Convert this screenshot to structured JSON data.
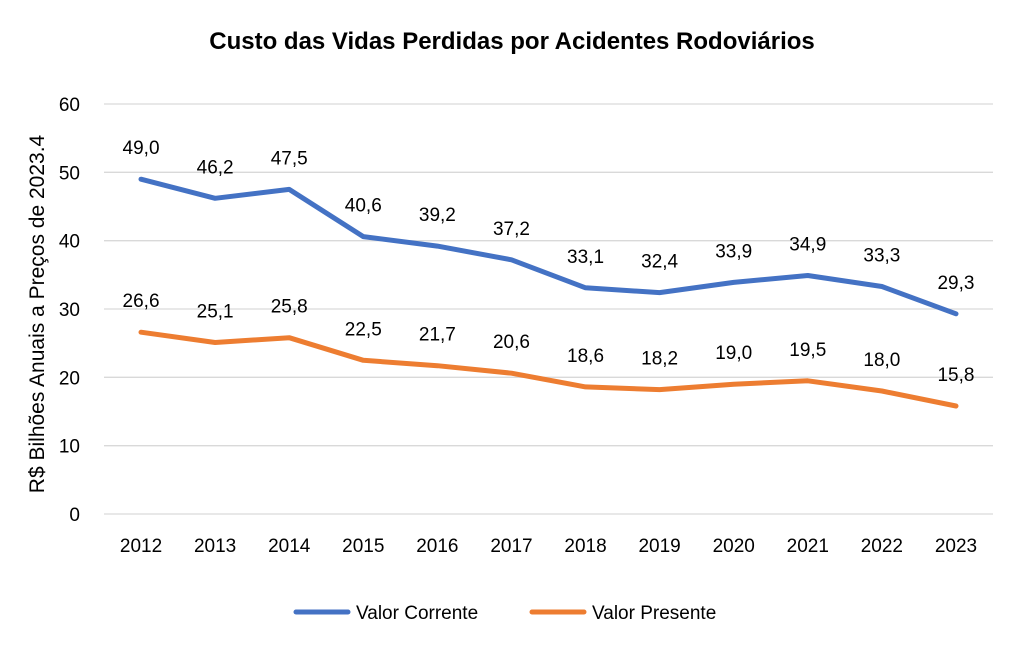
{
  "chart_data": {
    "type": "line",
    "title": "Custo das Vidas Perdidas por Acidentes Rodoviários",
    "xlabel": "",
    "ylabel": "R$ Bilhões Anuais a Preços de 2023.4",
    "ylim": [
      0,
      60
    ],
    "yticks": [
      "0",
      "10",
      "20",
      "30",
      "40",
      "50",
      "60"
    ],
    "grid": true,
    "legend_position": "bottom",
    "categories": [
      "2012",
      "2013",
      "2014",
      "2015",
      "2016",
      "2017",
      "2018",
      "2019",
      "2020",
      "2021",
      "2022",
      "2023"
    ],
    "series": [
      {
        "name": "Valor Corrente",
        "color": "#4472c4",
        "values": [
          49.0,
          46.2,
          47.5,
          40.6,
          39.2,
          37.2,
          33.1,
          32.4,
          33.9,
          34.9,
          33.3,
          29.3
        ],
        "labels": [
          "49,0",
          "46,2",
          "47,5",
          "40,6",
          "39,2",
          "37,2",
          "33,1",
          "32,4",
          "33,9",
          "34,9",
          "33,3",
          "29,3"
        ]
      },
      {
        "name": "Valor Presente",
        "color": "#ed7d31",
        "values": [
          26.6,
          25.1,
          25.8,
          22.5,
          21.7,
          20.6,
          18.6,
          18.2,
          19.0,
          19.5,
          18.0,
          15.8
        ],
        "labels": [
          "26,6",
          "25,1",
          "25,8",
          "22,5",
          "21,7",
          "20,6",
          "18,6",
          "18,2",
          "19,0",
          "19,5",
          "18,0",
          "15,8"
        ]
      }
    ]
  }
}
